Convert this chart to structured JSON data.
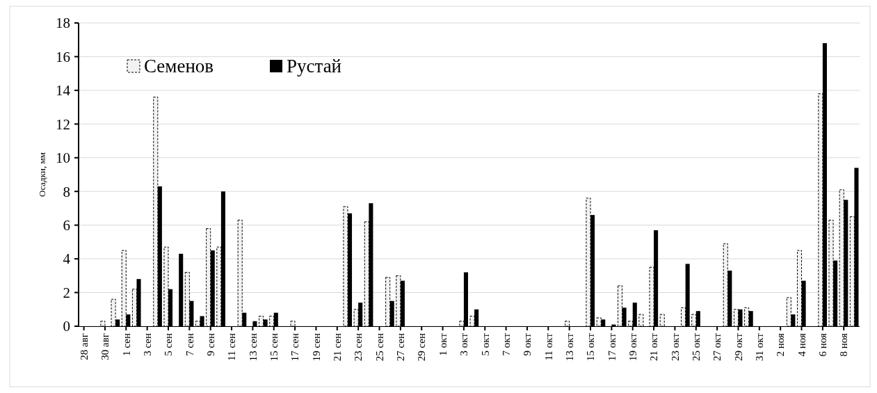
{
  "chart_data": {
    "type": "bar",
    "ylabel": "Осадки, мм",
    "categories": [
      "28 авг",
      null,
      "30 авг",
      null,
      "1 сен",
      null,
      "3 сен",
      null,
      "5 сен",
      null,
      "7 сен",
      null,
      "9 сен",
      null,
      "11 сен",
      null,
      "13 сен",
      null,
      "15 сен",
      null,
      "17 сен",
      null,
      "19 сен",
      null,
      "21 сен",
      null,
      "23 сен",
      null,
      "25 сен",
      null,
      "27 сен",
      null,
      "29 сен",
      null,
      "1 окт",
      null,
      "3 окт",
      null,
      "5 окт",
      null,
      "7 окт",
      null,
      "9 окт",
      null,
      "11 окт",
      null,
      "13 окт",
      null,
      "15 окт",
      null,
      "17 окт",
      null,
      "19 окт",
      null,
      "21 окт",
      null,
      "23 окт",
      null,
      "25 окт",
      null,
      "27 окт",
      null,
      "29 окт",
      null,
      "31 окт",
      null,
      "2 ноя",
      null,
      "4 ноя",
      null,
      "6 ноя",
      null,
      "8 ноя",
      null
    ],
    "series": [
      {
        "name": "Семенов",
        "color": "#f2f2f2",
        "line_style": "dashed",
        "values": [
          0,
          0,
          0.3,
          1.6,
          4.5,
          2.2,
          0,
          13.6,
          4.7,
          0,
          3.2,
          0.3,
          5.8,
          4.7,
          0,
          6.3,
          0,
          0.6,
          0.6,
          0,
          0.3,
          0,
          0,
          0,
          0,
          7.1,
          1.0,
          6.2,
          0,
          2.9,
          3.0,
          0,
          0,
          0,
          0,
          0,
          0.3,
          0.6,
          0,
          0,
          0,
          0,
          0,
          0,
          0,
          0,
          0.3,
          0,
          7.6,
          0.5,
          0,
          2.4,
          0.3,
          0.7,
          3.5,
          0.7,
          0,
          1.1,
          0.7,
          0,
          0,
          4.9,
          1.0,
          1.1,
          0,
          0,
          0,
          1.7,
          4.5,
          0,
          13.8,
          6.3,
          8.1,
          6.5
        ]
      },
      {
        "name": "Рустай",
        "color": "#000000",
        "line_style": "solid",
        "values": [
          0,
          0,
          0,
          0.4,
          0.7,
          2.8,
          0,
          8.3,
          2.2,
          4.3,
          1.5,
          0.6,
          4.5,
          8.0,
          0,
          0.8,
          0.3,
          0.4,
          0.8,
          0,
          0,
          0,
          0,
          0,
          0,
          6.7,
          1.4,
          7.3,
          0,
          1.5,
          2.7,
          0,
          0,
          0,
          0,
          0,
          3.2,
          1.0,
          0,
          0,
          0,
          0,
          0,
          0,
          0,
          0,
          0,
          0,
          6.6,
          0.4,
          0.1,
          1.1,
          1.4,
          0,
          5.7,
          0,
          0,
          3.7,
          0.9,
          0,
          0,
          3.3,
          1.0,
          0.9,
          0,
          0,
          0,
          0.7,
          2.7,
          0,
          16.8,
          3.9,
          7.5,
          9.4
        ]
      }
    ],
    "ylim": [
      0,
      18
    ],
    "yticks": [
      0,
      2,
      4,
      6,
      8,
      10,
      12,
      14,
      16,
      18
    ],
    "grid": "y",
    "legend": "top left"
  }
}
